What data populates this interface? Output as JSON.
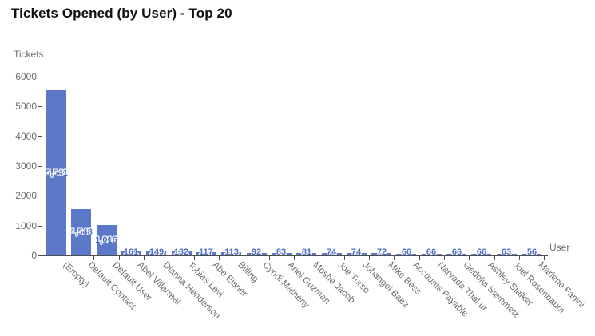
{
  "page": {
    "title": "Tickets Opened (by User) - Top 20"
  },
  "chart_data": {
    "type": "bar",
    "title": "Tickets Opened (by User) - Top 20",
    "xlabel": "User",
    "ylabel": "Tickets",
    "ylim": [
      0,
      6000
    ],
    "ytick_interval": 1000,
    "ytick_labels": [
      "0",
      "1000",
      "2000",
      "3000",
      "4000",
      "5000",
      "6000"
    ],
    "grid": "off",
    "legend": "none",
    "categories": [
      "(Empty)",
      "Default Contact",
      "Default User",
      "Abel Villarreal",
      "Dianna Henderson",
      "Tobias Levi",
      "Abe Eisner",
      "Billing",
      "Cyndi Matheny",
      "Ariel Guzman",
      "Moshe Jacob",
      "Joe Turso",
      "Johangel Baez",
      "Mike Bess",
      "Accounts Payable",
      "Narvada Thakur",
      "Gedolia Steinmetz",
      "Ashley Stalker",
      "Joel Rosenbaum",
      "Marlene Fanini"
    ],
    "values": [
      5541,
      1548,
      1016,
      161,
      149,
      132,
      117,
      113,
      92,
      83,
      81,
      74,
      74,
      72,
      66,
      66,
      66,
      66,
      63,
      56
    ],
    "value_labels": [
      "5,541",
      "1,548",
      "1,016",
      "161",
      "149",
      "132",
      "117",
      "113",
      "92",
      "83",
      "81",
      "74",
      "74",
      "72",
      "66",
      "66",
      "66",
      "66",
      "63",
      "56"
    ],
    "colors": {
      "bar": "#5b79c8",
      "value_label": "#4e6ec6",
      "axis": "#4d4d4d",
      "tick_label": "#6e6e6e",
      "title": "#111111"
    }
  }
}
